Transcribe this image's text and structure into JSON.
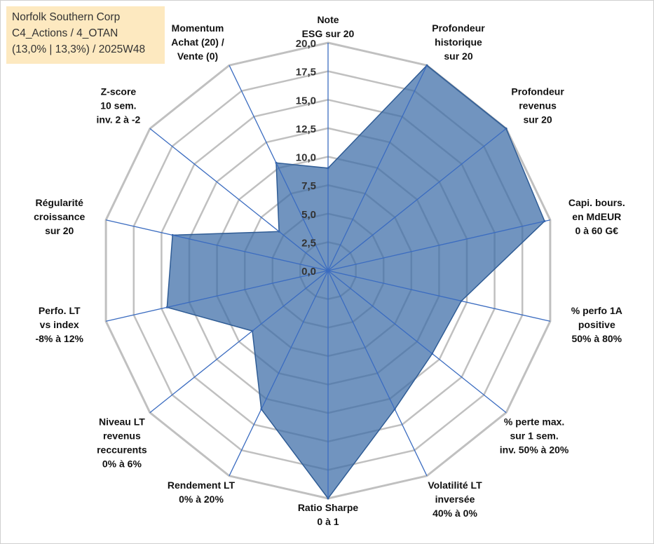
{
  "header": {
    "company": "Norfolk Southern Corp",
    "category": "C4_Actions / 4_OTAN",
    "detail": "(13,0% | 13,3%) / 2025W48"
  },
  "chart_data": {
    "type": "radar",
    "title": "Norfolk Southern Corp",
    "range": [
      0,
      20
    ],
    "tick_step": 2.5,
    "tick_labels": [
      "0,0",
      "2,5",
      "5,0",
      "7,5",
      "10,0",
      "12,5",
      "15,0",
      "17,5",
      "20,0"
    ],
    "axes": [
      {
        "label": [
          "Note",
          "ESG sur 20"
        ],
        "value": 9.0
      },
      {
        "label": [
          "Profondeur",
          "historique",
          "sur 20"
        ],
        "value": 20.0
      },
      {
        "label": [
          "Profondeur",
          "revenus",
          "sur 20"
        ],
        "value": 20.0
      },
      {
        "label": [
          "Capi. bours.",
          "en MdEUR",
          "0 à 60 G€"
        ],
        "value": 19.5
      },
      {
        "label": [
          "% perfo 1A",
          "positive",
          "50% à 80%"
        ],
        "value": 12.0
      },
      {
        "label": [
          "% perte max.",
          "sur 1 sem.",
          "inv. 50% à 20%"
        ],
        "value": 11.7
      },
      {
        "label": [
          "Volatilité LT",
          "inversée",
          "40% à 0%"
        ],
        "value": 13.5
      },
      {
        "label": [
          "Ratio Sharpe",
          "0 à 1"
        ],
        "value": 20.0
      },
      {
        "label": [
          "Rendement LT",
          "0% à 20%"
        ],
        "value": 13.5
      },
      {
        "label": [
          "Niveau LT",
          "revenus",
          "reccurents",
          "0% à 6%"
        ],
        "value": 8.5
      },
      {
        "label": [
          "Perfo. LT",
          "vs index",
          "-8% à 12%"
        ],
        "value": 14.5
      },
      {
        "label": [
          "Régularité",
          "croissance",
          "sur 20"
        ],
        "value": 14.0
      },
      {
        "label": [
          "Z-score",
          "10 sem.",
          "inv. 2 à -2"
        ],
        "value": 5.5
      },
      {
        "label": [
          "Momentum",
          "Achat (20) /",
          "Vente (0)"
        ],
        "value": 10.5
      }
    ],
    "colors": {
      "fill": "#3a6ba6",
      "stroke": "#2f5c95",
      "axis": "#3b6cc0",
      "grid": "#c0c0c0"
    }
  }
}
